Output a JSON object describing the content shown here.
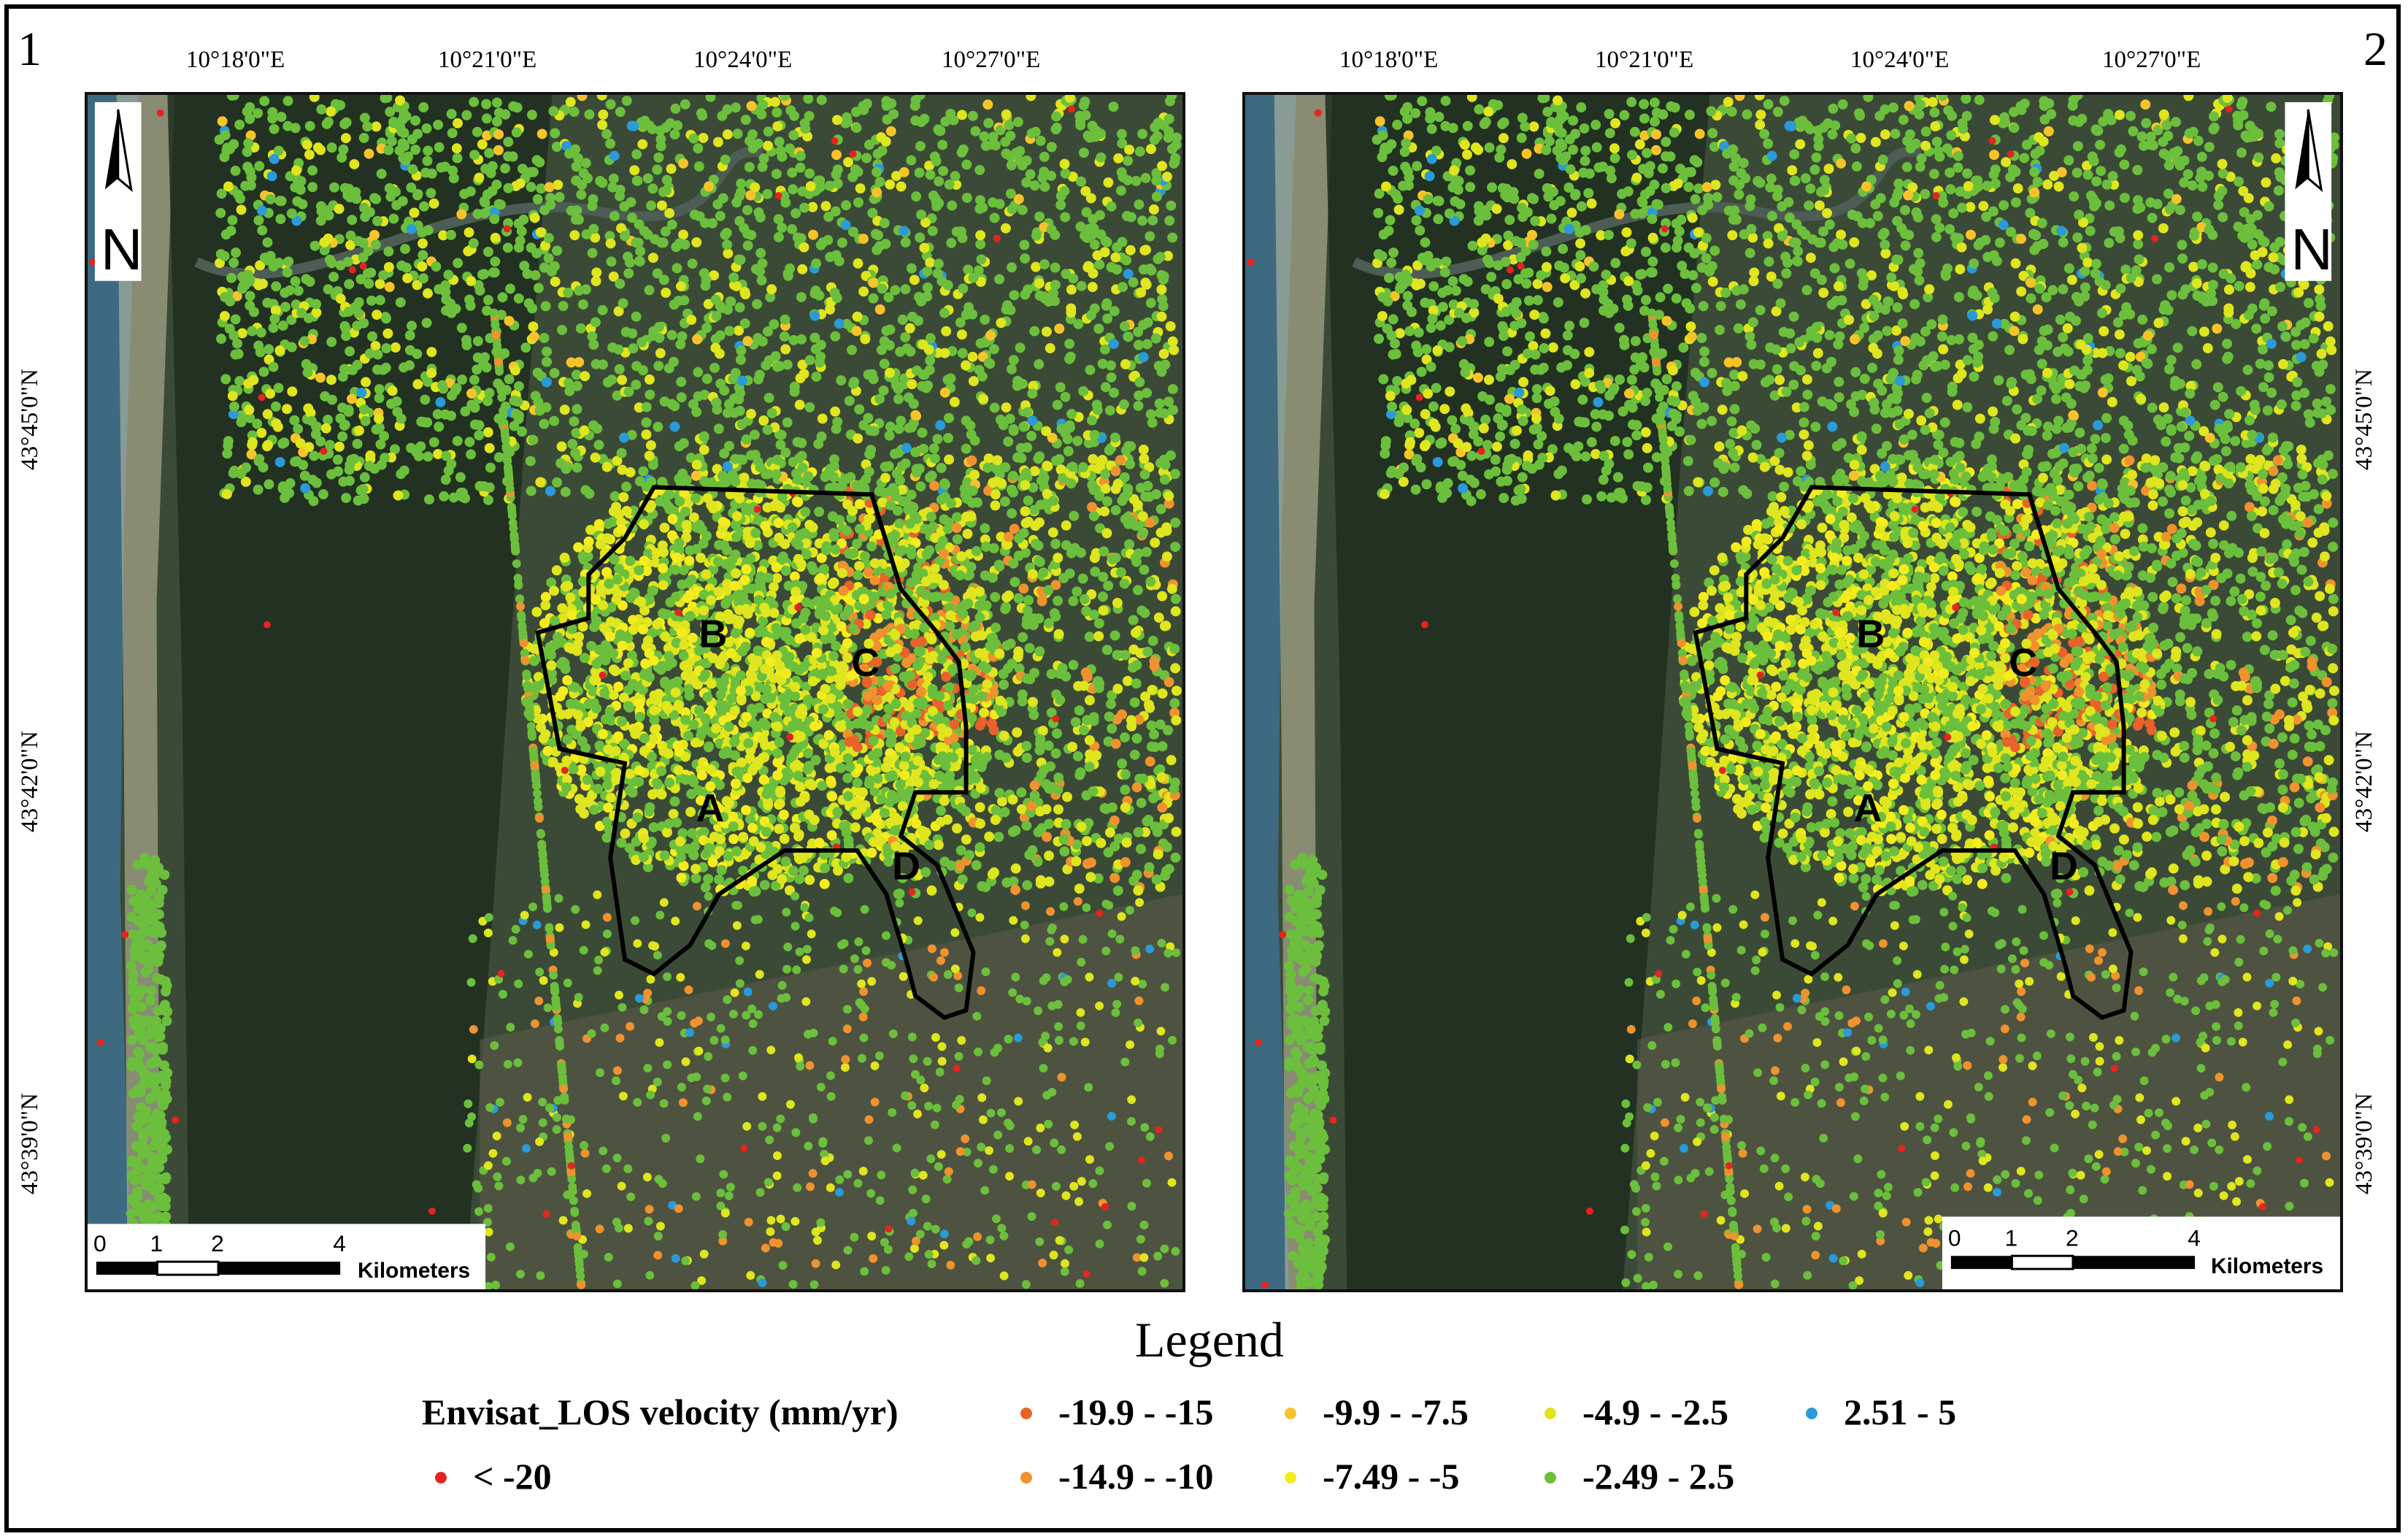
{
  "panels": [
    {
      "id": "1",
      "label": "1"
    },
    {
      "id": "2",
      "label": "2"
    }
  ],
  "top_ticks": [
    "10°18'0\"E",
    "10°21'0\"E",
    "10°24'0\"E",
    "10°27'0\"E"
  ],
  "side_ticks": [
    "43°45'0\"N",
    "43°42'0\"N",
    "43°39'0\"N"
  ],
  "north_arrow": {
    "letter": "N",
    "icon": "north-arrow-icon"
  },
  "scale_bar": {
    "numbers": [
      "0",
      "1",
      "2",
      "4"
    ],
    "unit": "Kilometers"
  },
  "zones": [
    "A",
    "B",
    "C",
    "D"
  ],
  "legend": {
    "title": "Legend",
    "layer": "Envisat_LOS velocity (mm/yr)",
    "classes": [
      {
        "label": "< -20",
        "color": "#e8231f"
      },
      {
        "label": "-19.9 - -15",
        "color": "#e8622a"
      },
      {
        "label": "-14.9 - -10",
        "color": "#f0922e"
      },
      {
        "label": "-9.9 - -7.5",
        "color": "#f7c32b"
      },
      {
        "label": "-7.49 - -5",
        "color": "#f5ec1f"
      },
      {
        "label": "-4.9 - -2.5",
        "color": "#dfe51e"
      },
      {
        "label": "-2.49 - 2.5",
        "color": "#6cbf3c"
      },
      {
        "label": "2.51 - 5",
        "color": "#2a9ad8"
      }
    ]
  }
}
